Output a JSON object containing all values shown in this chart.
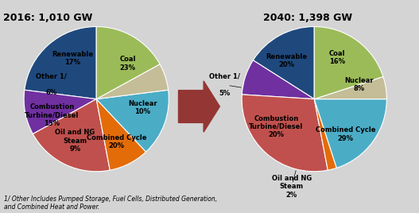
{
  "title_2016": "2016: 1,010 GW",
  "title_2040": "2040: 1,398 GW",
  "footnote": "1/ Other Includes Pumped Storage, Fuel Cells, Distributed Generation,\nand Combined Heat and Power.",
  "pie2016": {
    "labels": [
      "Coal",
      "Nuclear",
      "Combined Cycle",
      "Oil and NG\nSteam",
      "Combustion\nTurbine/Diesel",
      "Other 1/\n",
      "Renewable"
    ],
    "pcts": [
      "23%",
      "10%",
      "20%",
      "9%",
      "15%",
      "6%",
      "17%"
    ],
    "values": [
      23,
      10,
      20,
      9,
      15,
      6,
      17
    ],
    "colors": [
      "#1f497d",
      "#7030a0",
      "#c0504d",
      "#e36c09",
      "#4bacc6",
      "#c4bd97",
      "#9bbb59"
    ],
    "startangle": 90
  },
  "pie2040": {
    "labels": [
      "Coal",
      "Nuclear",
      "Combined Cycle",
      "Oil and NG\nSteam",
      "Combustion\nTurbine/Diesel",
      "Other 1/\n",
      "Renewable"
    ],
    "pcts": [
      "16%",
      "8%",
      "29%",
      "2%",
      "20%",
      "5%",
      "20%"
    ],
    "values": [
      16,
      8,
      29,
      2,
      20,
      5,
      20
    ],
    "colors": [
      "#1f497d",
      "#7030a0",
      "#c0504d",
      "#e36c09",
      "#4bacc6",
      "#c4bd97",
      "#9bbb59"
    ],
    "startangle": 90
  },
  "arrow_color": "#943634",
  "background_color": "#d4d4d4",
  "pie_bg": "white",
  "label_color_inside": "black",
  "label_fontsize": 6.0,
  "title_fontsize": 9.0,
  "footnote_fontsize": 5.5
}
